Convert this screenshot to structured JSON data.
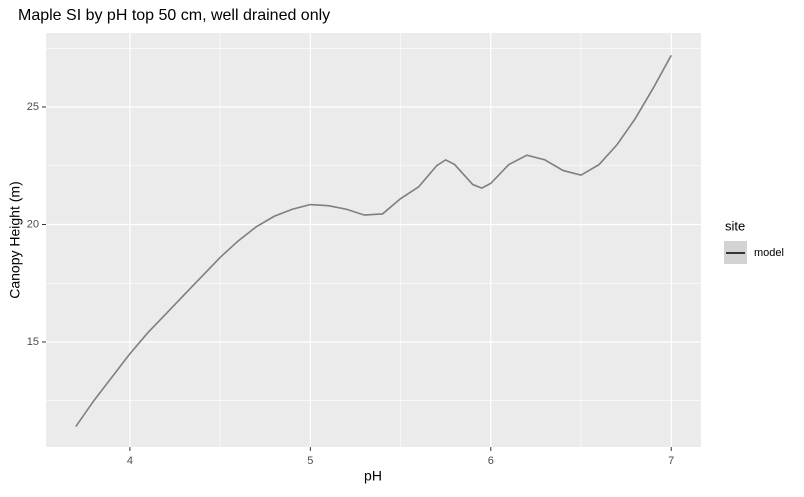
{
  "chart_data": {
    "type": "line",
    "title": "Maple SI by pH top 50 cm, well drained only",
    "x_label": "pH",
    "y_label": "Canopy Height (m)",
    "x": [
      3.7,
      3.8,
      3.9,
      4.0,
      4.1,
      4.2,
      4.3,
      4.4,
      4.5,
      4.6,
      4.7,
      4.8,
      4.9,
      5.0,
      5.1,
      5.2,
      5.3,
      5.4,
      5.5,
      5.6,
      5.7,
      5.75,
      5.8,
      5.9,
      5.95,
      6.0,
      6.1,
      6.2,
      6.3,
      6.4,
      6.5,
      6.6,
      6.7,
      6.8,
      6.9,
      7.0
    ],
    "series": [
      {
        "name": "model",
        "color": "#7f7f7f",
        "values": [
          11.4,
          12.5,
          13.5,
          14.5,
          15.4,
          16.2,
          17.0,
          17.8,
          18.6,
          19.3,
          19.9,
          20.35,
          20.65,
          20.85,
          20.8,
          20.65,
          20.4,
          20.45,
          21.1,
          21.6,
          22.5,
          22.75,
          22.55,
          21.7,
          21.55,
          21.75,
          22.55,
          22.95,
          22.75,
          22.3,
          22.1,
          22.55,
          23.4,
          24.5,
          25.8,
          27.2
        ]
      }
    ],
    "legend_title": "site",
    "xlim": [
      3.535,
      7.165
    ],
    "ylim": [
      10.53,
      28.15
    ],
    "xticks": [
      4,
      5,
      6,
      7
    ],
    "yticks": [
      15,
      20,
      25
    ],
    "x_minor_ticks": [
      4.5,
      5.5,
      6.5
    ],
    "y_minor_ticks": [
      12.5,
      17.5,
      22.5,
      27.5
    ],
    "grid": true
  }
}
